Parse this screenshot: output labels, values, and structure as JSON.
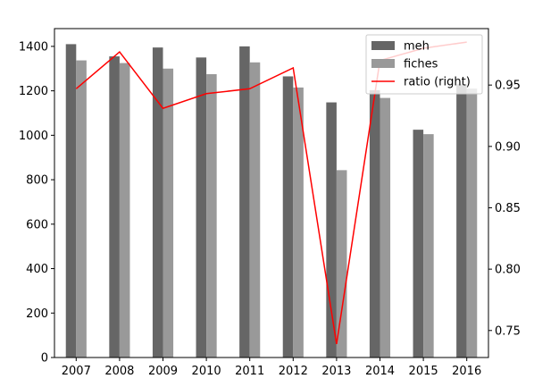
{
  "chart_data": {
    "type": "bar",
    "categories": [
      "2007",
      "2008",
      "2009",
      "2010",
      "2011",
      "2012",
      "2013",
      "2014",
      "2015",
      "2016"
    ],
    "series": [
      {
        "name": "meh",
        "axis": "left",
        "kind": "bar",
        "color": "#666666",
        "values": [
          1410,
          1355,
          1395,
          1350,
          1400,
          1265,
          1148,
          1203,
          1025,
          1230
        ]
      },
      {
        "name": "fiches",
        "axis": "left",
        "kind": "bar",
        "color": "#999999",
        "values": [
          1337,
          1325,
          1300,
          1275,
          1328,
          1215,
          843,
          1168,
          1005,
          1210
        ]
      },
      {
        "name": "ratio (right)",
        "axis": "right",
        "kind": "line",
        "color": "#ff0000",
        "values": [
          0.947,
          0.977,
          0.931,
          0.943,
          0.947,
          0.964,
          0.739,
          0.97,
          0.98,
          0.985
        ]
      }
    ],
    "left_axis": {
      "ylim": [
        0,
        1480
      ],
      "ticks": [
        0,
        200,
        400,
        600,
        800,
        1000,
        1200,
        1400
      ]
    },
    "right_axis": {
      "ylim": [
        0.728,
        0.996
      ],
      "ticks": [
        "0.75",
        "0.80",
        "0.85",
        "0.90",
        "0.95"
      ]
    },
    "legend": {
      "placement": "top-right"
    },
    "grid": false
  }
}
